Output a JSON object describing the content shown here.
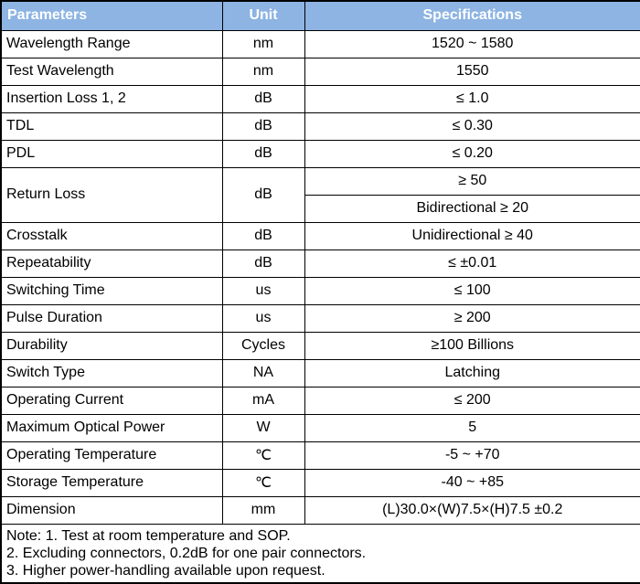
{
  "colors": {
    "header_bg": "#8DB4E2",
    "header_text": "#FFFFFF",
    "border": "#000000",
    "body_text": "#000000"
  },
  "table": {
    "headers": {
      "parameters": "Parameters",
      "unit": "Unit",
      "specifications": "Specifications"
    },
    "rows": [
      {
        "param": "Wavelength Range",
        "unit": "nm",
        "spec": "1520 ~ 1580"
      },
      {
        "param": "Test Wavelength",
        "unit": "nm",
        "spec": "1550"
      },
      {
        "param": "Insertion Loss 1, 2",
        "unit": "dB",
        "spec": "≤ 1.0"
      },
      {
        "param": "TDL",
        "unit": "dB",
        "spec": "≤ 0.30"
      },
      {
        "param": "PDL",
        "unit": "dB",
        "spec": "≤ 0.20"
      },
      {
        "param": "Return Loss",
        "unit": "dB",
        "spec": [
          "≥ 50",
          "Bidirectional ≥ 20"
        ]
      },
      {
        "param": "Crosstalk",
        "unit": "dB",
        "spec": "Unidirectional ≥ 40"
      },
      {
        "param": "Repeatability",
        "unit": "dB",
        "spec": "≤ ±0.01"
      },
      {
        "param": "Switching Time",
        "unit": "us",
        "spec": "≤ 100"
      },
      {
        "param": "Pulse Duration",
        "unit": "us",
        "spec": "≥ 200"
      },
      {
        "param": "Durability",
        "unit": "Cycles",
        "spec": "≥100 Billions"
      },
      {
        "param": "Switch Type",
        "unit": "NA",
        "spec": "Latching"
      },
      {
        "param": "Operating Current",
        "unit": "mA",
        "spec": "≤ 200"
      },
      {
        "param": "Maximum Optical Power",
        "unit": "W",
        "spec": "5"
      },
      {
        "param": "Operating Temperature",
        "unit": "℃",
        "spec": "-5 ~ +70"
      },
      {
        "param": "Storage Temperature",
        "unit": "℃",
        "spec": "-40 ~ +85"
      },
      {
        "param": "Dimension",
        "unit": "mm",
        "spec": "(L)30.0×(W)7.5×(H)7.5 ±0.2"
      }
    ],
    "notes": [
      "Note: 1. Test at room temperature and SOP.",
      "2. Excluding connectors, 0.2dB for one pair connectors.",
      "3. Higher power-handling available upon request."
    ]
  }
}
